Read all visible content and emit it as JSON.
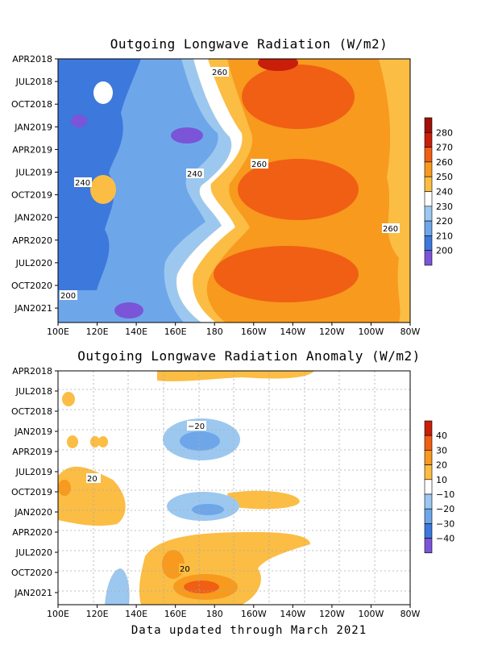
{
  "charts": [
    {
      "type": "heatmap",
      "title": "Outgoing Longwave Radiation (W/m2)",
      "x_ticks": [
        "100E",
        "120E",
        "140E",
        "160E",
        "180",
        "160W",
        "140W",
        "120W",
        "100W",
        "80W"
      ],
      "y_ticks": [
        "APR2018",
        "JUL2018",
        "OCT2018",
        "JAN2019",
        "APR2019",
        "JUL2019",
        "OCT2019",
        "JAN2020",
        "APR2020",
        "JUL2020",
        "OCT2020",
        "JAN2021"
      ],
      "colorbar": [
        "280",
        "270",
        "260",
        "250",
        "240",
        "230",
        "220",
        "210",
        "200"
      ],
      "colorbar_colors": [
        "#c81e0a",
        "#f05f14",
        "#f79a1e",
        "#fbbd44",
        "#ffffff",
        "#9cc8f0",
        "#6ea6ea",
        "#3d78dc",
        "#7a55d8"
      ],
      "contour_labels": [
        "260",
        "260",
        "260",
        "240",
        "240",
        "200"
      ]
    },
    {
      "type": "heatmap",
      "title": "Outgoing Longwave Radiation Anomaly (W/m2)",
      "x_ticks": [
        "100E",
        "120E",
        "140E",
        "160E",
        "180",
        "160W",
        "140W",
        "120W",
        "100W",
        "80W"
      ],
      "y_ticks": [
        "APR2018",
        "JUL2018",
        "OCT2018",
        "JAN2019",
        "APR2019",
        "JUL2019",
        "OCT2019",
        "JAN2020",
        "APR2020",
        "JUL2020",
        "OCT2020",
        "JAN2021"
      ],
      "colorbar": [
        "40",
        "30",
        "20",
        "10",
        "−10",
        "−20",
        "−30",
        "−40"
      ],
      "colorbar_colors": [
        "#c81e0a",
        "#f05f14",
        "#f79a1e",
        "#fbbd44",
        "#ffffff",
        "#9cc8f0",
        "#6ea6ea",
        "#3d78dc",
        "#7a55d8"
      ],
      "contour_labels": [
        "−20",
        "20",
        "20"
      ]
    }
  ],
  "footer": "Data updated through March 2021"
}
